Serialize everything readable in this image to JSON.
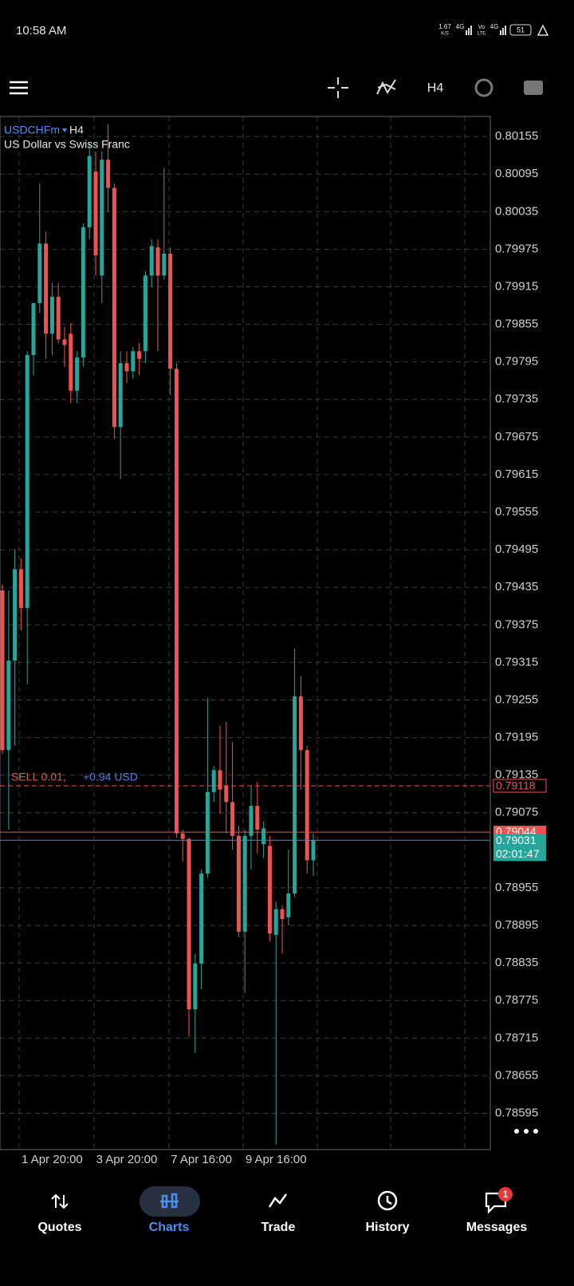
{
  "status_bar": {
    "time": "10:58 AM",
    "speed": "1.67",
    "speed_unit": "K/S",
    "network1": "4G",
    "volte": "Vo",
    "lte": "LTE",
    "network2": "4G",
    "battery": "51"
  },
  "toolbar": {
    "timeframe": "H4"
  },
  "chart_data": {
    "type": "candlestick",
    "symbol": "USDCHFm",
    "timeframe": "H4",
    "description": "US Dollar vs Swiss Franc",
    "up_color": "#26a69a",
    "down_color": "#ef5350",
    "grid": true,
    "categories": [
      null,
      null,
      null,
      null,
      null,
      null,
      null,
      null,
      "1 Apr 20:00",
      null,
      null,
      null,
      null,
      null,
      null,
      null,
      null,
      null,
      null,
      null,
      "3 Apr 20:00",
      null,
      null,
      null,
      null,
      null,
      null,
      null,
      null,
      null,
      null,
      null,
      "7 Apr 16:00",
      null,
      null,
      null,
      null,
      null,
      null,
      null,
      null,
      null,
      null,
      null,
      "9 Apr 16:00",
      null,
      null,
      null,
      null,
      null,
      null
    ],
    "open": [
      0.7943,
      0.79175,
      0.79318,
      0.79464,
      0.79402,
      0.79806,
      0.79889,
      0.79984,
      0.7984,
      0.79899,
      0.79831,
      0.7984,
      0.79749,
      0.79802,
      0.8001,
      0.80099,
      0.79933,
      0.80118,
      0.80073,
      0.79691,
      0.79793,
      0.7978,
      0.79812,
      0.79812,
      0.79933,
      0.79978,
      0.79933,
      0.79968,
      0.79784,
      0.79042,
      0.79033,
      0.78761,
      0.78834,
      0.78978,
      0.79108,
      0.79143,
      0.79118,
      0.79092,
      0.79038,
      0.78885,
      0.79038,
      0.79086,
      0.79025,
      0.79022,
      0.7888,
      0.78921,
      0.78908,
      0.78946,
      0.79261,
      0.79175,
      0.78999
    ],
    "high": [
      0.7944,
      0.7943,
      0.79496,
      0.79481,
      0.79812,
      0.79889,
      0.8008,
      0.80003,
      0.79921,
      0.79921,
      0.79851,
      0.79857,
      0.79812,
      0.80016,
      0.80144,
      0.80131,
      0.80131,
      0.80175,
      0.8008,
      0.79812,
      0.79812,
      0.79819,
      0.79825,
      0.7994,
      0.79991,
      0.79991,
      0.80105,
      0.79978,
      0.79793,
      0.79048,
      0.79035,
      0.7885,
      0.78984,
      0.79258,
      0.7915,
      0.79214,
      0.7922,
      0.79188,
      0.79054,
      0.79048,
      0.79118,
      0.79124,
      0.79061,
      0.79038,
      0.78933,
      0.78927,
      0.79016,
      0.79337,
      0.79293,
      0.79182,
      0.79042
    ],
    "low": [
      0.79169,
      0.79048,
      0.79182,
      0.79366,
      0.7928,
      0.79774,
      0.79873,
      0.798,
      0.79806,
      0.79825,
      0.79787,
      0.79729,
      0.79729,
      0.79787,
      0.79991,
      0.79933,
      0.79889,
      0.80035,
      0.79672,
      0.79608,
      0.79761,
      0.79768,
      0.79774,
      0.79793,
      0.79914,
      0.79812,
      0.79927,
      0.79742,
      0.79035,
      0.78997,
      0.78717,
      0.78691,
      0.78793,
      0.78971,
      0.79092,
      0.79073,
      0.79042,
      0.79016,
      0.78876,
      0.78787,
      0.78984,
      0.7901,
      0.79003,
      0.7887,
      0.78545,
      0.7885,
      0.78895,
      0.7894,
      0.79112,
      0.78978,
      0.78974
    ],
    "close": [
      0.79175,
      0.79318,
      0.79464,
      0.79402,
      0.79806,
      0.79889,
      0.79984,
      0.7984,
      0.79899,
      0.79831,
      0.79822,
      0.79749,
      0.79802,
      0.8001,
      0.80124,
      0.79965,
      0.80118,
      0.80073,
      0.79691,
      0.79793,
      0.7978,
      0.79812,
      0.798,
      0.79933,
      0.7998,
      0.79933,
      0.79968,
      0.79784,
      0.79042,
      0.79033,
      0.78761,
      0.78834,
      0.78978,
      0.79108,
      0.79143,
      0.79112,
      0.79092,
      0.79038,
      0.78885,
      0.79038,
      0.79086,
      0.79048,
      0.7905,
      0.78882,
      0.78921,
      0.78905,
      0.78946,
      0.79261,
      0.79175,
      0.78999,
      0.79031
    ],
    "ylim": [
      0.78537,
      0.80187
    ],
    "yticks": [
      0.80155,
      0.80095,
      0.80035,
      0.79975,
      0.79915,
      0.79855,
      0.79795,
      0.79735,
      0.79675,
      0.79615,
      0.79555,
      0.79495,
      0.79435,
      0.79375,
      0.79315,
      0.79255,
      0.79195,
      0.79135,
      0.79075,
      0.78955,
      0.78895,
      0.78835,
      0.78775,
      0.78715,
      0.78655,
      0.78595
    ],
    "ask": 0.79044,
    "bid": 0.79031,
    "timer": "02:01:47",
    "position": {
      "label": "SELL 0.01,",
      "profit": "+0.94 USD",
      "price": 0.79118
    }
  },
  "nav": {
    "items": [
      "Quotes",
      "Charts",
      "Trade",
      "History",
      "Messages"
    ],
    "badge": "1"
  }
}
